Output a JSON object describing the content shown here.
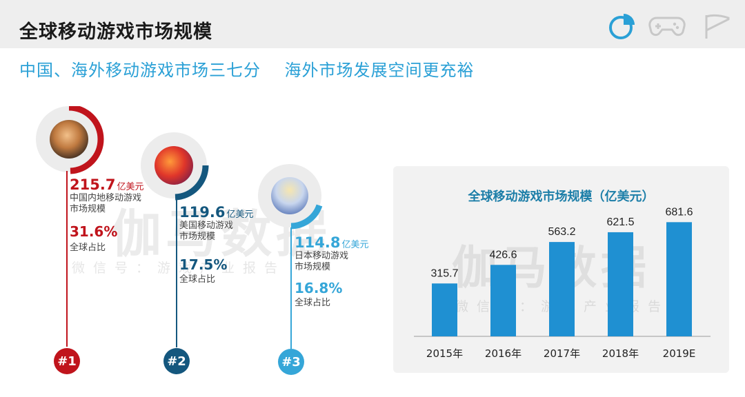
{
  "header": {
    "title": "全球移动游戏市场规模",
    "icons": [
      "pie-chart-icon",
      "gamepad-icon",
      "flag-icon"
    ]
  },
  "subtitle": "中国、海外移动游戏市场三七分    海外市场发展空间更充裕",
  "watermark": {
    "big": "伽马数据",
    "small": "微信号：游戏产业报告"
  },
  "rankings": [
    {
      "rank": "#1",
      "value": "215.7",
      "unit": "亿美元",
      "desc_line1": "中国内地移动游戏",
      "desc_line2": "市场规模",
      "share": "31.6%",
      "share_label": "全球占比",
      "color": "#c0141c"
    },
    {
      "rank": "#2",
      "value": "119.6",
      "unit": "亿美元",
      "desc_line1": "美国移动游戏",
      "desc_line2": "市场规模",
      "share": "17.5%",
      "share_label": "全球占比",
      "color": "#14577e"
    },
    {
      "rank": "#3",
      "value": "114.8",
      "unit": "亿美元",
      "desc_line1": "日本移动游戏",
      "desc_line2": "市场规模",
      "share": "16.8%",
      "share_label": "全球占比",
      "color": "#35a6d8"
    }
  ],
  "chart_data": {
    "type": "bar",
    "title": "全球移动游戏市场规模（亿美元）",
    "categories": [
      "2015年",
      "2016年",
      "2017年",
      "2018年",
      "2019E"
    ],
    "values": [
      315.7,
      426.6,
      563.2,
      621.5,
      681.6
    ],
    "ylim": [
      0,
      720
    ],
    "bar_color": "#1f90d2",
    "grid": false,
    "xlabel": "",
    "ylabel": ""
  }
}
